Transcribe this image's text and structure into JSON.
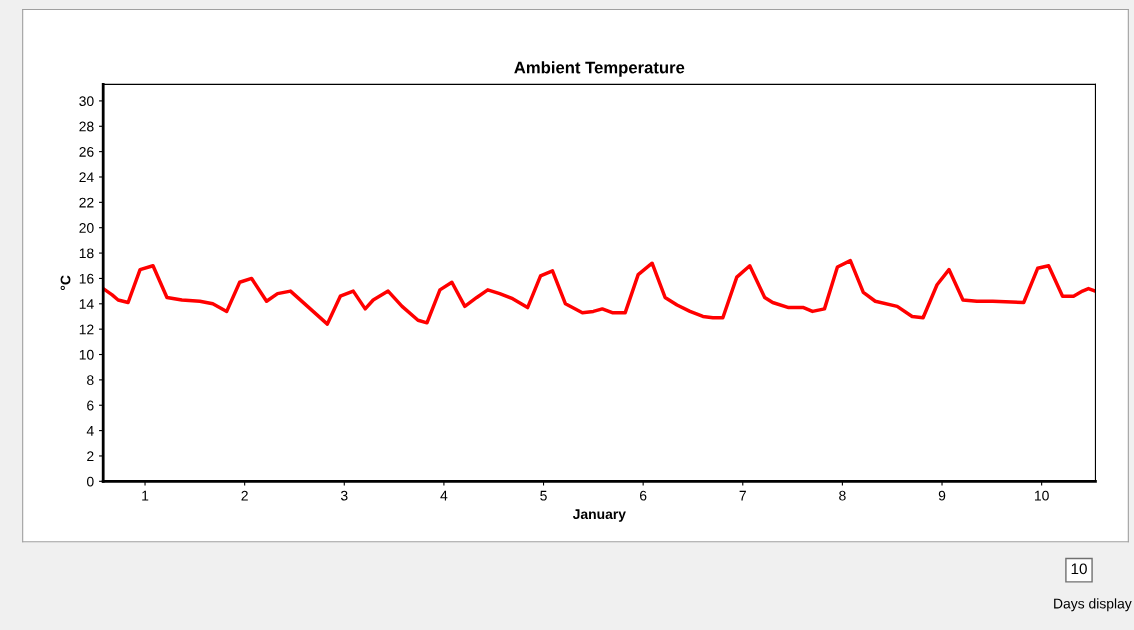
{
  "chart_data": {
    "type": "line",
    "title": "Ambient Temperature",
    "xlabel": "January",
    "ylabel": "°C",
    "x": [
      0.58,
      0.67,
      0.73,
      0.83,
      0.95,
      1.08,
      1.22,
      1.37,
      1.55,
      1.68,
      1.82,
      1.95,
      2.07,
      2.22,
      2.33,
      2.46,
      2.83,
      2.96,
      3.09,
      3.21,
      3.29,
      3.44,
      3.58,
      3.74,
      3.83,
      3.96,
      4.08,
      4.21,
      4.33,
      4.44,
      4.56,
      4.69,
      4.84,
      4.97,
      5.09,
      5.22,
      5.39,
      5.5,
      5.59,
      5.69,
      5.82,
      5.95,
      6.09,
      6.22,
      6.34,
      6.47,
      6.6,
      6.7,
      6.8,
      6.94,
      7.07,
      7.22,
      7.3,
      7.46,
      7.61,
      7.7,
      7.82,
      7.95,
      8.08,
      8.21,
      8.33,
      8.55,
      8.7,
      8.81,
      8.95,
      9.07,
      9.21,
      9.35,
      9.51,
      9.82,
      9.96,
      10.07,
      10.21,
      10.32,
      10.41,
      10.47,
      10.54
    ],
    "series": [
      {
        "color": "#ff0000",
        "values": [
          15.2,
          14.7,
          14.3,
          14.1,
          16.7,
          17.0,
          14.5,
          14.3,
          14.2,
          14.0,
          13.4,
          15.7,
          16.0,
          14.2,
          14.8,
          15.0,
          12.4,
          14.6,
          15.0,
          13.6,
          14.3,
          15.0,
          13.8,
          12.7,
          12.5,
          15.1,
          15.7,
          13.8,
          14.5,
          15.1,
          14.8,
          14.4,
          13.7,
          16.2,
          16.6,
          14.0,
          13.3,
          13.4,
          13.6,
          13.3,
          13.3,
          16.3,
          17.2,
          14.5,
          13.9,
          13.4,
          13.0,
          12.9,
          12.9,
          16.1,
          17.0,
          14.5,
          14.1,
          13.7,
          13.7,
          13.4,
          13.6,
          16.9,
          17.4,
          14.9,
          14.2,
          13.8,
          13.0,
          12.9,
          15.5,
          16.7,
          14.3,
          14.2,
          14.2,
          14.1,
          16.8,
          17.0,
          14.6,
          14.6,
          15.0,
          15.2,
          15.0
        ]
      }
    ],
    "xlim": [
      0.58,
      10.54
    ],
    "xticks": [
      1,
      2,
      3,
      4,
      5,
      6,
      7,
      8,
      9,
      10
    ],
    "ylim": [
      0,
      31.3
    ],
    "yticks": [
      0,
      2,
      4,
      6,
      8,
      10,
      12,
      14,
      16,
      18,
      20,
      22,
      24,
      26,
      28,
      30
    ],
    "grid": false,
    "marker": "none",
    "line_style": "solid",
    "annotations": [
      "10",
      "Days display"
    ]
  }
}
